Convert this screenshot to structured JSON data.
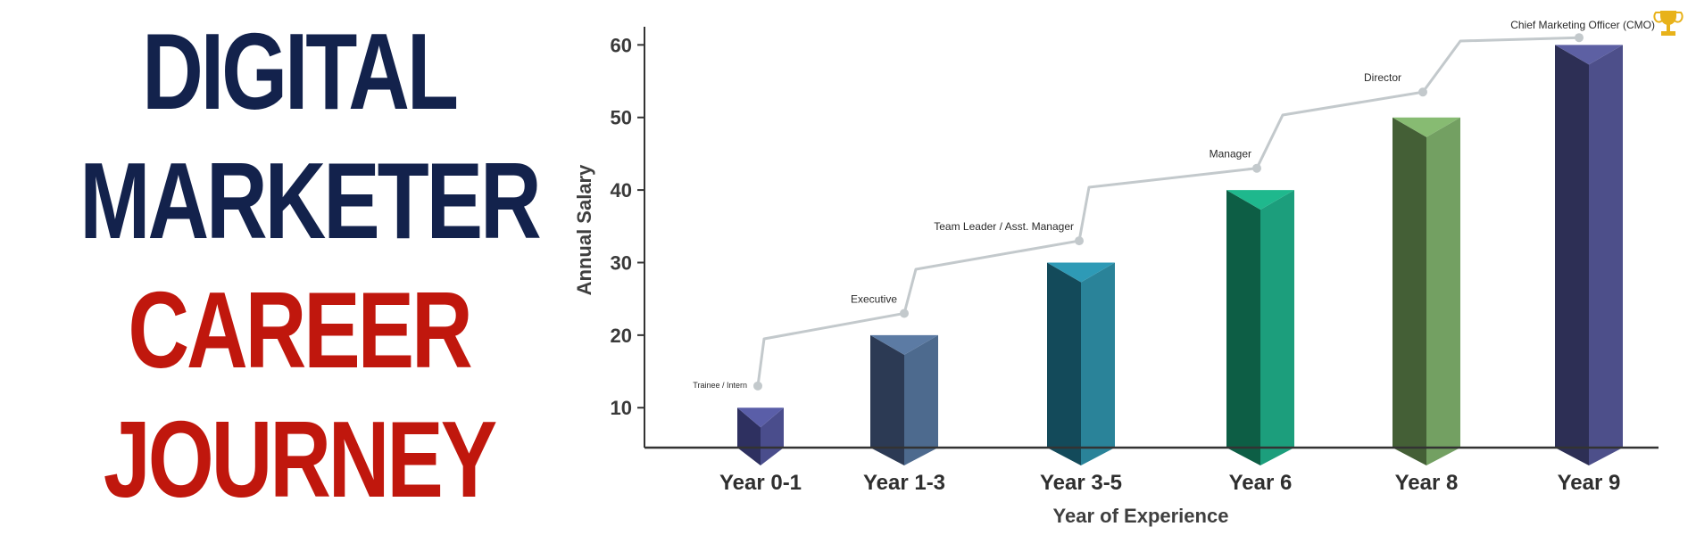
{
  "heading": {
    "lines": [
      {
        "text": "DIGITAL",
        "color": "#13224c"
      },
      {
        "text": "MARKETER",
        "color": "#13224c"
      },
      {
        "text": "CAREER",
        "color": "#c0170d"
      },
      {
        "text": "JOURNEY",
        "color": "#c0170d"
      }
    ]
  },
  "chart_data": {
    "type": "bar",
    "categories": [
      "Year 0-1",
      "Year 1-3",
      "Year 3-5",
      "Year 6",
      "Year 8",
      "Year 9"
    ],
    "values": [
      10,
      20,
      30,
      40,
      50,
      60
    ],
    "roles": [
      "Trainee / Intern",
      "Executive",
      "Team Leader / Asst. Manager",
      "Manager",
      "Director",
      "Chief Marketing Officer (CMO)"
    ],
    "role_points": [
      13,
      23,
      33,
      43,
      53.5,
      61
    ],
    "ylim": [
      4.5,
      62.5
    ],
    "yticks": [
      10,
      20,
      30,
      40,
      50,
      60
    ],
    "xlabel": "Year of Experience",
    "ylabel": "Annual Salary",
    "grid": false,
    "legend": "none",
    "bar_colors": [
      {
        "front": "#2e3060",
        "side": "#4a4d8c",
        "top": "#5a5ea8"
      },
      {
        "front": "#2c3a54",
        "side": "#4d6a8e",
        "top": "#5c7ba4"
      },
      {
        "front": "#134a5a",
        "side": "#2a8399",
        "top": "#2e9ab6"
      },
      {
        "front": "#0d5e45",
        "side": "#1c9e7c",
        "top": "#1fb88d"
      },
      {
        "front": "#445f36",
        "side": "#73a062",
        "top": "#87bb72"
      },
      {
        "front": "#2d2f55",
        "side": "#4d4f8a",
        "top": "#5d60a3"
      }
    ],
    "line_color": "#c3c9cc",
    "trophy_color": "#e8b21a"
  }
}
